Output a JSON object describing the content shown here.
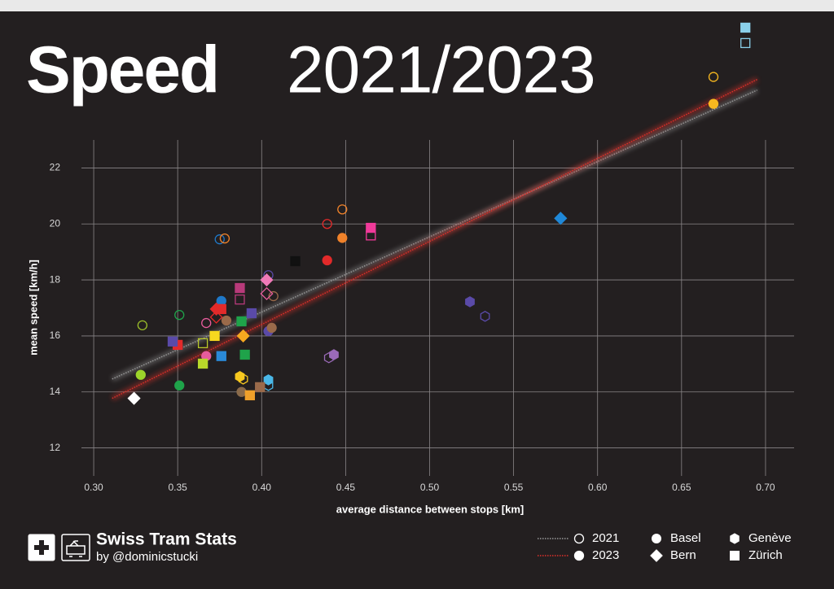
{
  "chart_data": {
    "type": "scatter",
    "title": "Speed",
    "subtitle": "2021/2023",
    "x_label": "average distance between stops [km]",
    "y_label": "mean speed [km/h]",
    "xlim": [
      0.2927,
      0.717
    ],
    "ylim": [
      11,
      23
    ],
    "xticks": [
      {
        "value": 0.3,
        "label": "0.30"
      },
      0.35,
      {
        "value": 0.4,
        "label": "0.40"
      },
      0.45,
      {
        "value": 0.5,
        "label": "0.50"
      },
      0.55,
      {
        "value": 0.6,
        "label": "0.60"
      },
      0.65,
      {
        "value": 0.7,
        "label": "0.70"
      }
    ],
    "yticks": [
      12,
      14,
      16,
      18,
      20,
      22
    ],
    "grid": true,
    "years": [
      {
        "name": "2021",
        "marker": "hollow",
        "trend_color": "#9a9a9a",
        "trend": {
          "x": [
            0.311,
            0.695
          ],
          "values": [
            14.46,
            24.78
          ]
        }
      },
      {
        "name": "2023",
        "marker": "filled",
        "trend_color": "#e0302a",
        "trend": {
          "x": [
            0.311,
            0.695
          ],
          "values": [
            13.77,
            25.16
          ]
        }
      }
    ],
    "cities": [
      {
        "name": "Basel",
        "shape": "circle",
        "by_year": [
          {
            "x": [
              0.329,
              0.351,
              0.367,
              0.375,
              0.378,
              0.439,
              0.448,
              0.669,
              0.404,
              0.407
            ],
            "values": [
              16.38,
              16.75,
              16.46,
              19.45,
              19.48,
              20.0,
              20.52,
              25.25,
              18.17,
              17.42
            ],
            "colors": [
              "#9cbf2a",
              "#1fa34a",
              "#e85c9c",
              "#1f78c8",
              "#f0822a",
              "#e22a2a",
              "#f0822a",
              "#f7b81f",
              "#5a4aa8",
              "#9a6a4a"
            ]
          },
          {
            "x": [
              0.328,
              0.351,
              0.367,
              0.376,
              0.379,
              0.404,
              0.406,
              0.388,
              0.439,
              0.448,
              0.669
            ],
            "values": [
              14.61,
              14.23,
              15.28,
              17.25,
              16.55,
              16.17,
              16.29,
              14.0,
              18.7,
              19.5,
              24.29
            ],
            "colors": [
              "#9cd42a",
              "#1fa34a",
              "#e85c9c",
              "#1f78c8",
              "#9a6a4a",
              "#5a4aa8",
              "#9a6a4a",
              "#8a6a4a",
              "#e22a2a",
              "#f0822a",
              "#f7b81f"
            ]
          }
        ]
      },
      {
        "name": "Bern",
        "shape": "diamond",
        "by_year": [
          {
            "x": [
              0.403,
              0.373
            ],
            "values": [
              17.51,
              16.67
            ],
            "colors": [
              "#e85c9c",
              "#e22a2a"
            ]
          },
          {
            "x": [
              0.324,
              0.389,
              0.403,
              0.373,
              0.578
            ],
            "values": [
              13.77,
              16.0,
              18.0,
              16.96,
              20.2
            ],
            "colors": [
              "#ffffff",
              "#f7a81f",
              "#f07ab8",
              "#e22a2a",
              "#1f88d8"
            ]
          }
        ]
      },
      {
        "name": "Genève",
        "shape": "hexagon",
        "by_year": [
          {
            "x": [
              0.533,
              0.44,
              0.389,
              0.404
            ],
            "values": [
              16.7,
              15.22,
              14.46,
              14.23
            ],
            "colors": [
              "#5a4aa8",
              "#9a6ab8",
              "#f7c81f",
              "#4ab8e8"
            ]
          },
          {
            "x": [
              0.524,
              0.443,
              0.387,
              0.404
            ],
            "values": [
              17.22,
              15.33,
              14.55,
              14.43
            ],
            "colors": [
              "#5a4aa8",
              "#9a6ab8",
              "#f7c81f",
              "#4ab8e8"
            ]
          }
        ]
      },
      {
        "name": "Zürich",
        "shape": "square",
        "by_year": [
          {
            "x": [
              0.365,
              0.387,
              0.465,
              0.688
            ],
            "values": [
              15.74,
              17.3,
              19.59,
              26.46
            ],
            "colors": [
              "#b8c82a",
              "#b83a7a",
              "#f03a9a",
              "#8ad0ea"
            ]
          },
          {
            "x": [
              0.35,
              0.347,
              0.372,
              0.376,
              0.376,
              0.365,
              0.388,
              0.39,
              0.387,
              0.394,
              0.393,
              0.399,
              0.42,
              0.465,
              0.688
            ],
            "values": [
              15.68,
              15.8,
              16.0,
              16.96,
              15.28,
              15.01,
              16.52,
              15.33,
              17.71,
              16.81,
              13.88,
              14.17,
              18.67,
              19.86,
              27.01
            ],
            "colors": [
              "#e22a2a",
              "#5a4aa8",
              "#f7d81f",
              "#e22a2a",
              "#2a8ad8",
              "#b8d82a",
              "#1fa34a",
              "#1fa34a",
              "#b83a7a",
              "#5a4aa8",
              "#f0a02a",
              "#9a6a4a",
              "#111111",
              "#f03a9a",
              "#8ad0ea"
            ]
          }
        ]
      }
    ],
    "brand": "Swiss Tram Stats",
    "author": "by @dominicstucki"
  }
}
